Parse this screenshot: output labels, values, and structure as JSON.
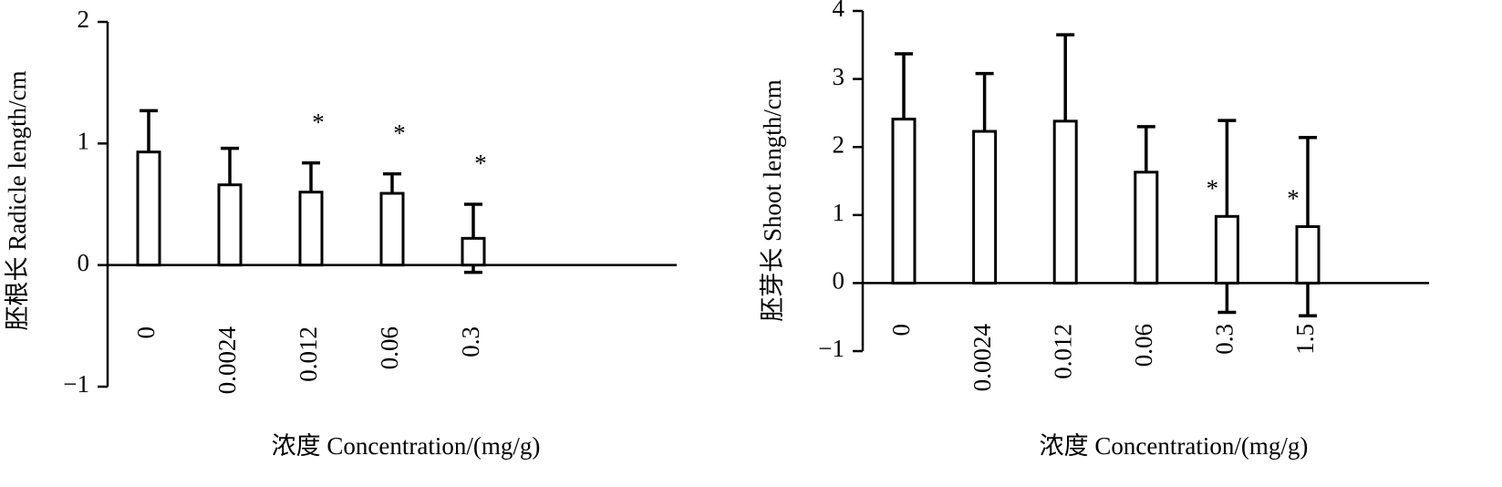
{
  "chart_data": [
    {
      "type": "bar",
      "y_label": "胚根长 Radicle length/cm",
      "x_label": "浓度 Concentration/(mg/g)",
      "categories": [
        "0",
        "0.0024",
        "0.012",
        "0.06",
        "0.3"
      ],
      "values": [
        0.93,
        0.66,
        0.6,
        0.59,
        0.22
      ],
      "errors": [
        0.34,
        0.3,
        0.24,
        0.16,
        0.28
      ],
      "markers": [
        null,
        null,
        "*",
        "*",
        "*"
      ],
      "color": "#ffffff",
      "edge_color": "#000000",
      "ylim": [
        -1,
        2
      ],
      "yticks": [
        {
          "value": -1,
          "label": "−1"
        },
        0,
        1,
        2
      ]
    },
    {
      "type": "bar",
      "y_label": "胚芽长 Shoot length/cm",
      "x_label": "浓度 Concentration/(mg/g)",
      "categories": [
        "0",
        "0.0024",
        "0.012",
        "0.06",
        "0.3",
        "1.5"
      ],
      "values": [
        2.41,
        2.23,
        2.38,
        1.63,
        0.98,
        0.83
      ],
      "errors": [
        0.96,
        0.85,
        1.27,
        0.67,
        1.41,
        1.31
      ],
      "markers": [
        null,
        null,
        null,
        null,
        "*",
        "*"
      ],
      "color": "#ffffff",
      "edge_color": "#000000",
      "ylim": [
        -1,
        4
      ],
      "yticks": [
        {
          "value": -1,
          "label": "−1"
        },
        0,
        1,
        2,
        3,
        4
      ]
    }
  ]
}
